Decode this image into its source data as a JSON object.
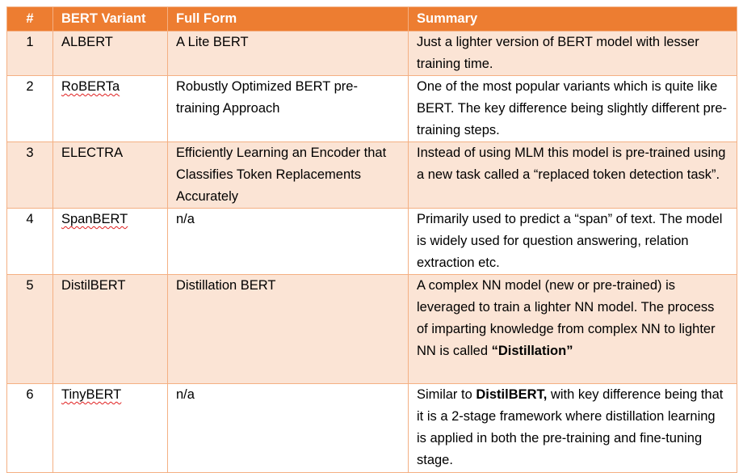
{
  "table": {
    "header": [
      "#",
      "BERT Variant",
      "Full Form",
      "Summary"
    ],
    "rows": [
      {
        "num": "1",
        "variant": "ALBERT",
        "misspelled": false,
        "full_form": "A Lite BERT",
        "summary": [
          {
            "text": "Just a lighter version of BERT model with lesser training time.",
            "bold": false
          }
        ]
      },
      {
        "num": "2",
        "variant": "RoBERTa",
        "misspelled": true,
        "full_form": "Robustly Optimized BERT pre-training Approach",
        "summary": [
          {
            "text": "One of the most popular variants which is quite like BERT. The key difference being slightly different pre-training steps.",
            "bold": false
          }
        ]
      },
      {
        "num": "3",
        "variant": "ELECTRA",
        "misspelled": false,
        "full_form": "Efficiently Learning an Encoder that Classifies Token Replacements Accurately",
        "summary": [
          {
            "text": "Instead of using MLM this model is pre-trained using a new task called a “replaced token detection task”.",
            "bold": false
          }
        ]
      },
      {
        "num": "4",
        "variant": "SpanBERT",
        "misspelled": true,
        "full_form": "n/a",
        "summary": [
          {
            "text": "Primarily used to predict a “span” of text. The model is widely used for question answering, relation extraction etc.",
            "bold": false
          }
        ]
      },
      {
        "num": "5",
        "variant": "DistilBERT",
        "misspelled": false,
        "full_form": "Distillation BERT",
        "summary": [
          {
            "text": "A complex NN model (new or pre-trained) is leveraged to train a lighter NN model. The process of imparting knowledge from complex NN to lighter NN is called ",
            "bold": false
          },
          {
            "text": "“Distillation”",
            "bold": true
          }
        ]
      },
      {
        "num": "6",
        "variant": "TinyBERT",
        "misspelled": true,
        "full_form": "n/a",
        "summary": [
          {
            "text": "Similar to ",
            "bold": false
          },
          {
            "text": "DistilBERT,",
            "bold": true
          },
          {
            "text": " with key difference being that it is a 2-stage framework where distillation learning is applied in both the pre-training and fine-tuning stage.",
            "bold": false
          }
        ]
      }
    ]
  }
}
